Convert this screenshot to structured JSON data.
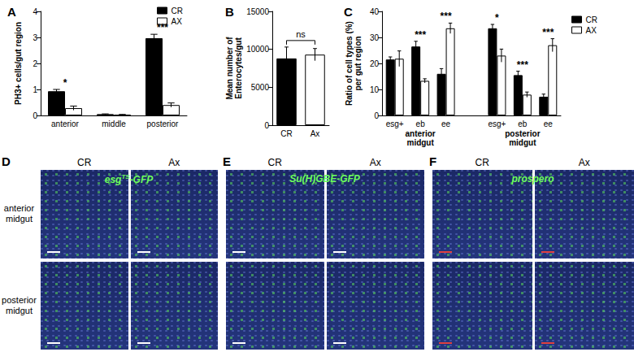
{
  "chart_data": [
    {
      "type": "bar",
      "panel": "A",
      "ylabel": "PH3+ cells/gut region",
      "categories": [
        "anterior",
        "middle",
        "posterior"
      ],
      "series": [
        {
          "name": "CR",
          "color": "#000000",
          "values": [
            0.93,
            0.05,
            2.97
          ],
          "errors": [
            0.07,
            0.01,
            0.15
          ]
        },
        {
          "name": "AX",
          "color": "#ffffff",
          "values": [
            0.28,
            0.03,
            0.4
          ],
          "errors": [
            0.08,
            0.01,
            0.08
          ]
        }
      ],
      "significance": [
        "*",
        null,
        "***"
      ],
      "ylim": [
        0,
        4
      ],
      "yticks": [
        0,
        1,
        2,
        3,
        4
      ],
      "grid": false,
      "legend": "top right"
    },
    {
      "type": "bar",
      "panel": "B",
      "ylabel": "Mean number of\nEnterocytes/gut",
      "categories": [
        "CR",
        "Ax"
      ],
      "values": [
        8800,
        9300
      ],
      "errors": [
        1500,
        800
      ],
      "colors": [
        "#000000",
        "#ffffff"
      ],
      "comparison": "ns",
      "ylim": [
        0,
        15000
      ],
      "yticks": [
        0,
        5000,
        10000,
        15000
      ],
      "grid": false
    },
    {
      "type": "bar",
      "panel": "C",
      "ylabel": "Ratio of cell types (%)\nper gut region",
      "categories": [
        "esg+",
        "eb",
        "ee",
        null,
        "esg+",
        "eb",
        "ee"
      ],
      "group_labels": [
        "anterior\nmidgut",
        "posterior\nmidgut"
      ],
      "series": [
        {
          "name": "CR",
          "color": "#000000",
          "values": [
            21.5,
            26.5,
            16,
            null,
            33.5,
            15.5,
            7.2
          ],
          "errors": [
            1,
            2,
            2,
            null,
            1.5,
            1.5,
            1
          ]
        },
        {
          "name": "AX",
          "color": "#ffffff",
          "values": [
            21.8,
            13.3,
            33.5,
            null,
            23,
            8,
            27
          ],
          "errors": [
            3,
            0.8,
            2,
            null,
            2.5,
            1,
            2.5
          ]
        }
      ],
      "significance": [
        null,
        "***",
        "***",
        null,
        "*",
        "***",
        "***"
      ],
      "ylim": [
        0,
        40
      ],
      "yticks": [
        0,
        10,
        20,
        30,
        40
      ],
      "grid": false,
      "legend": "right"
    }
  ],
  "image_panels": [
    {
      "panel": "D",
      "columns": [
        "CR",
        "Ax"
      ],
      "rows": [
        "anterior\nmidgut",
        "posterior\nmidgut"
      ],
      "marker": {
        "text": "esg",
        "sup": "TS",
        "suffix": "-GFP"
      }
    },
    {
      "panel": "E",
      "columns": [
        "CR",
        "Ax"
      ],
      "marker": {
        "text": "Su(H)GBE-GFP"
      }
    },
    {
      "panel": "F",
      "columns": [
        "CR",
        "Ax"
      ],
      "marker": {
        "text": "prospero"
      }
    }
  ]
}
